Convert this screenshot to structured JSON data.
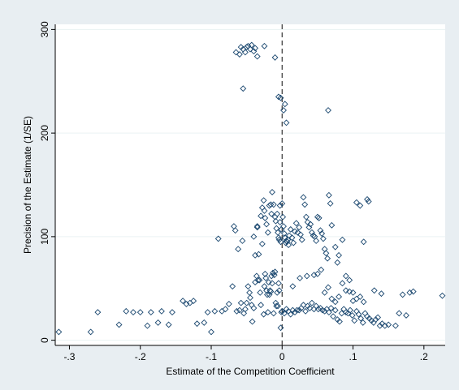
{
  "chart_data": {
    "type": "scatter",
    "title": "",
    "xlabel": "Estimate of the Competition Coefficient",
    "ylabel": "Precision of the Estimate (1/SE)",
    "xlim": [
      -0.32,
      0.23
    ],
    "ylim": [
      -5,
      305
    ],
    "xticks": [
      -0.3,
      -0.2,
      -0.1,
      0,
      0.1,
      0.2
    ],
    "xtick_labels": [
      "-.3",
      "-.2",
      "-.1",
      "0",
      ".1",
      ".2"
    ],
    "yticks": [
      0,
      100,
      200,
      300
    ],
    "ytick_labels": [
      "0",
      "100",
      "200",
      "300"
    ],
    "grid": "horizontal",
    "reference_line": {
      "x": 0,
      "style": "dashed"
    },
    "marker": "hollow-diamond",
    "colors": {
      "plot_bg": "#ffffff",
      "outer_bg": "#e8eef2",
      "marker": "#1a476f",
      "grid": "#eaf2f3"
    },
    "points": [
      [
        -0.315,
        8
      ],
      [
        -0.27,
        8
      ],
      [
        -0.26,
        27
      ],
      [
        -0.23,
        15
      ],
      [
        -0.22,
        28
      ],
      [
        -0.21,
        27
      ],
      [
        -0.2,
        27
      ],
      [
        -0.19,
        14
      ],
      [
        -0.185,
        27
      ],
      [
        -0.175,
        17
      ],
      [
        -0.17,
        28
      ],
      [
        -0.16,
        15
      ],
      [
        -0.155,
        27
      ],
      [
        -0.14,
        38
      ],
      [
        -0.135,
        35
      ],
      [
        -0.13,
        36
      ],
      [
        -0.125,
        38
      ],
      [
        -0.12,
        16
      ],
      [
        -0.11,
        17
      ],
      [
        -0.105,
        27
      ],
      [
        -0.1,
        8
      ],
      [
        -0.095,
        28
      ],
      [
        -0.09,
        98
      ],
      [
        -0.085,
        28
      ],
      [
        -0.08,
        30
      ],
      [
        -0.075,
        35
      ],
      [
        -0.07,
        52
      ],
      [
        -0.068,
        110
      ],
      [
        -0.066,
        106
      ],
      [
        -0.064,
        28
      ],
      [
        -0.062,
        88
      ],
      [
        -0.06,
        29
      ],
      [
        -0.058,
        36
      ],
      [
        -0.056,
        96
      ],
      [
        -0.054,
        26
      ],
      [
        -0.052,
        30
      ],
      [
        -0.05,
        36
      ],
      [
        -0.048,
        52
      ],
      [
        -0.046,
        46
      ],
      [
        -0.045,
        41
      ],
      [
        -0.043,
        34
      ],
      [
        -0.042,
        18
      ],
      [
        -0.04,
        31
      ],
      [
        -0.038,
        56
      ],
      [
        -0.036,
        62
      ],
      [
        -0.035,
        109
      ],
      [
        -0.034,
        58
      ],
      [
        -0.033,
        83
      ],
      [
        -0.032,
        58
      ],
      [
        -0.031,
        46
      ],
      [
        -0.03,
        34
      ],
      [
        -0.028,
        93
      ],
      [
        -0.026,
        25
      ],
      [
        -0.025,
        52
      ],
      [
        -0.024,
        64
      ],
      [
        -0.023,
        60
      ],
      [
        -0.022,
        48
      ],
      [
        -0.021,
        44
      ],
      [
        -0.02,
        27
      ],
      [
        -0.019,
        56
      ],
      [
        -0.018,
        44
      ],
      [
        -0.017,
        48
      ],
      [
        -0.016,
        47
      ],
      [
        -0.015,
        62
      ],
      [
        -0.014,
        55
      ],
      [
        -0.013,
        65
      ],
      [
        -0.012,
        26
      ],
      [
        -0.011,
        63
      ],
      [
        -0.01,
        66
      ],
      [
        -0.009,
        36
      ],
      [
        -0.008,
        33
      ],
      [
        -0.007,
        46
      ],
      [
        -0.006,
        33
      ],
      [
        -0.005,
        55
      ],
      [
        -0.004,
        48
      ],
      [
        -0.003,
        130
      ],
      [
        -0.002,
        12
      ],
      [
        -0.001,
        27
      ],
      [
        -0.065,
        278
      ],
      [
        -0.06,
        276
      ],
      [
        -0.058,
        283
      ],
      [
        -0.055,
        281
      ],
      [
        -0.052,
        278
      ],
      [
        -0.05,
        283
      ],
      [
        -0.048,
        284
      ],
      [
        -0.045,
        281
      ],
      [
        -0.043,
        285
      ],
      [
        -0.04,
        279
      ],
      [
        -0.038,
        282
      ],
      [
        -0.035,
        274
      ],
      [
        -0.025,
        284
      ],
      [
        -0.01,
        273
      ],
      [
        -0.055,
        243
      ],
      [
        -0.005,
        235
      ],
      [
        -0.002,
        234
      ],
      [
        0.002,
        222
      ],
      [
        0.004,
        228
      ],
      [
        0.006,
        210
      ],
      [
        0.065,
        222
      ],
      [
        -0.04,
        100
      ],
      [
        -0.038,
        82
      ],
      [
        -0.035,
        110
      ],
      [
        -0.03,
        120
      ],
      [
        -0.028,
        128
      ],
      [
        -0.026,
        135
      ],
      [
        -0.025,
        125
      ],
      [
        -0.024,
        118
      ],
      [
        -0.022,
        112
      ],
      [
        -0.02,
        104
      ],
      [
        -0.018,
        130
      ],
      [
        -0.016,
        131
      ],
      [
        -0.015,
        122
      ],
      [
        -0.014,
        143
      ],
      [
        -0.012,
        131
      ],
      [
        -0.01,
        119
      ],
      [
        -0.009,
        115
      ],
      [
        -0.008,
        108
      ],
      [
        -0.007,
        122
      ],
      [
        -0.006,
        104
      ],
      [
        -0.005,
        99
      ],
      [
        -0.004,
        97
      ],
      [
        -0.003,
        114
      ],
      [
        -0.002,
        95
      ],
      [
        -0.001,
        107
      ],
      [
        0.0,
        132
      ],
      [
        0.001,
        119
      ],
      [
        0.002,
        110
      ],
      [
        0.003,
        103
      ],
      [
        0.004,
        99
      ],
      [
        0.005,
        94
      ],
      [
        0.006,
        96
      ],
      [
        0.007,
        95
      ],
      [
        0.008,
        97
      ],
      [
        0.009,
        92
      ],
      [
        0.01,
        101
      ],
      [
        0.012,
        107
      ],
      [
        0.014,
        99
      ],
      [
        0.016,
        94
      ],
      [
        0.018,
        105
      ],
      [
        0.02,
        113
      ],
      [
        0.022,
        104
      ],
      [
        0.024,
        109
      ],
      [
        0.026,
        102
      ],
      [
        0.028,
        97
      ],
      [
        0.03,
        138
      ],
      [
        0.032,
        131
      ],
      [
        0.034,
        119
      ],
      [
        0.036,
        114
      ],
      [
        0.038,
        109
      ],
      [
        0.04,
        112
      ],
      [
        0.042,
        104
      ],
      [
        0.044,
        101
      ],
      [
        0.046,
        100
      ],
      [
        0.048,
        96
      ],
      [
        0.05,
        119
      ],
      [
        0.052,
        118
      ],
      [
        0.054,
        106
      ],
      [
        0.056,
        103
      ],
      [
        0.058,
        98
      ],
      [
        0.06,
        88
      ],
      [
        0.062,
        84
      ],
      [
        0.064,
        79
      ],
      [
        0.066,
        140
      ],
      [
        0.068,
        132
      ],
      [
        0.07,
        111
      ],
      [
        0.075,
        90
      ],
      [
        0.078,
        75
      ],
      [
        0.08,
        82
      ],
      [
        0.085,
        97
      ],
      [
        0.09,
        62
      ],
      [
        0.095,
        58
      ],
      [
        0.1,
        46
      ],
      [
        0.105,
        133
      ],
      [
        0.11,
        130
      ],
      [
        0.115,
        95
      ],
      [
        0.12,
        136
      ],
      [
        0.122,
        134
      ],
      [
        0.13,
        48
      ],
      [
        0.14,
        45
      ],
      [
        0.0,
        28
      ],
      [
        0.003,
        26
      ],
      [
        0.006,
        30
      ],
      [
        0.009,
        28
      ],
      [
        0.012,
        25
      ],
      [
        0.015,
        29
      ],
      [
        0.018,
        27
      ],
      [
        0.021,
        29
      ],
      [
        0.024,
        29
      ],
      [
        0.027,
        31
      ],
      [
        0.03,
        34
      ],
      [
        0.033,
        28
      ],
      [
        0.036,
        33
      ],
      [
        0.039,
        31
      ],
      [
        0.042,
        36
      ],
      [
        0.045,
        30
      ],
      [
        0.048,
        33
      ],
      [
        0.051,
        30
      ],
      [
        0.054,
        31
      ],
      [
        0.057,
        29
      ],
      [
        0.06,
        28
      ],
      [
        0.063,
        30
      ],
      [
        0.066,
        27
      ],
      [
        0.069,
        31
      ],
      [
        0.072,
        23
      ],
      [
        0.075,
        29
      ],
      [
        0.078,
        20
      ],
      [
        0.081,
        18
      ],
      [
        0.084,
        26
      ],
      [
        0.087,
        30
      ],
      [
        0.09,
        27
      ],
      [
        0.093,
        26
      ],
      [
        0.096,
        29
      ],
      [
        0.099,
        24
      ],
      [
        0.102,
        19
      ],
      [
        0.105,
        28
      ],
      [
        0.108,
        25
      ],
      [
        0.111,
        21
      ],
      [
        0.114,
        17
      ],
      [
        0.117,
        26
      ],
      [
        0.12,
        23
      ],
      [
        0.123,
        21
      ],
      [
        0.126,
        19
      ],
      [
        0.129,
        17
      ],
      [
        0.132,
        20
      ],
      [
        0.135,
        22
      ],
      [
        0.138,
        14
      ],
      [
        0.141,
        16
      ],
      [
        0.145,
        14
      ],
      [
        0.15,
        15
      ],
      [
        0.16,
        14
      ],
      [
        0.165,
        26
      ],
      [
        0.17,
        44
      ],
      [
        0.175,
        24
      ],
      [
        0.18,
        46
      ],
      [
        0.185,
        47
      ],
      [
        0.226,
        43
      ],
      [
        0.015,
        52
      ],
      [
        0.025,
        60
      ],
      [
        0.035,
        62
      ],
      [
        0.045,
        63
      ],
      [
        0.05,
        64
      ],
      [
        0.055,
        68
      ],
      [
        0.06,
        46
      ],
      [
        0.065,
        51
      ],
      [
        0.07,
        40
      ],
      [
        0.075,
        37
      ],
      [
        0.08,
        42
      ],
      [
        0.085,
        55
      ],
      [
        0.09,
        48
      ],
      [
        0.095,
        47
      ],
      [
        0.1,
        38
      ],
      [
        0.105,
        40
      ],
      [
        0.11,
        42
      ],
      [
        0.115,
        37
      ]
    ]
  }
}
